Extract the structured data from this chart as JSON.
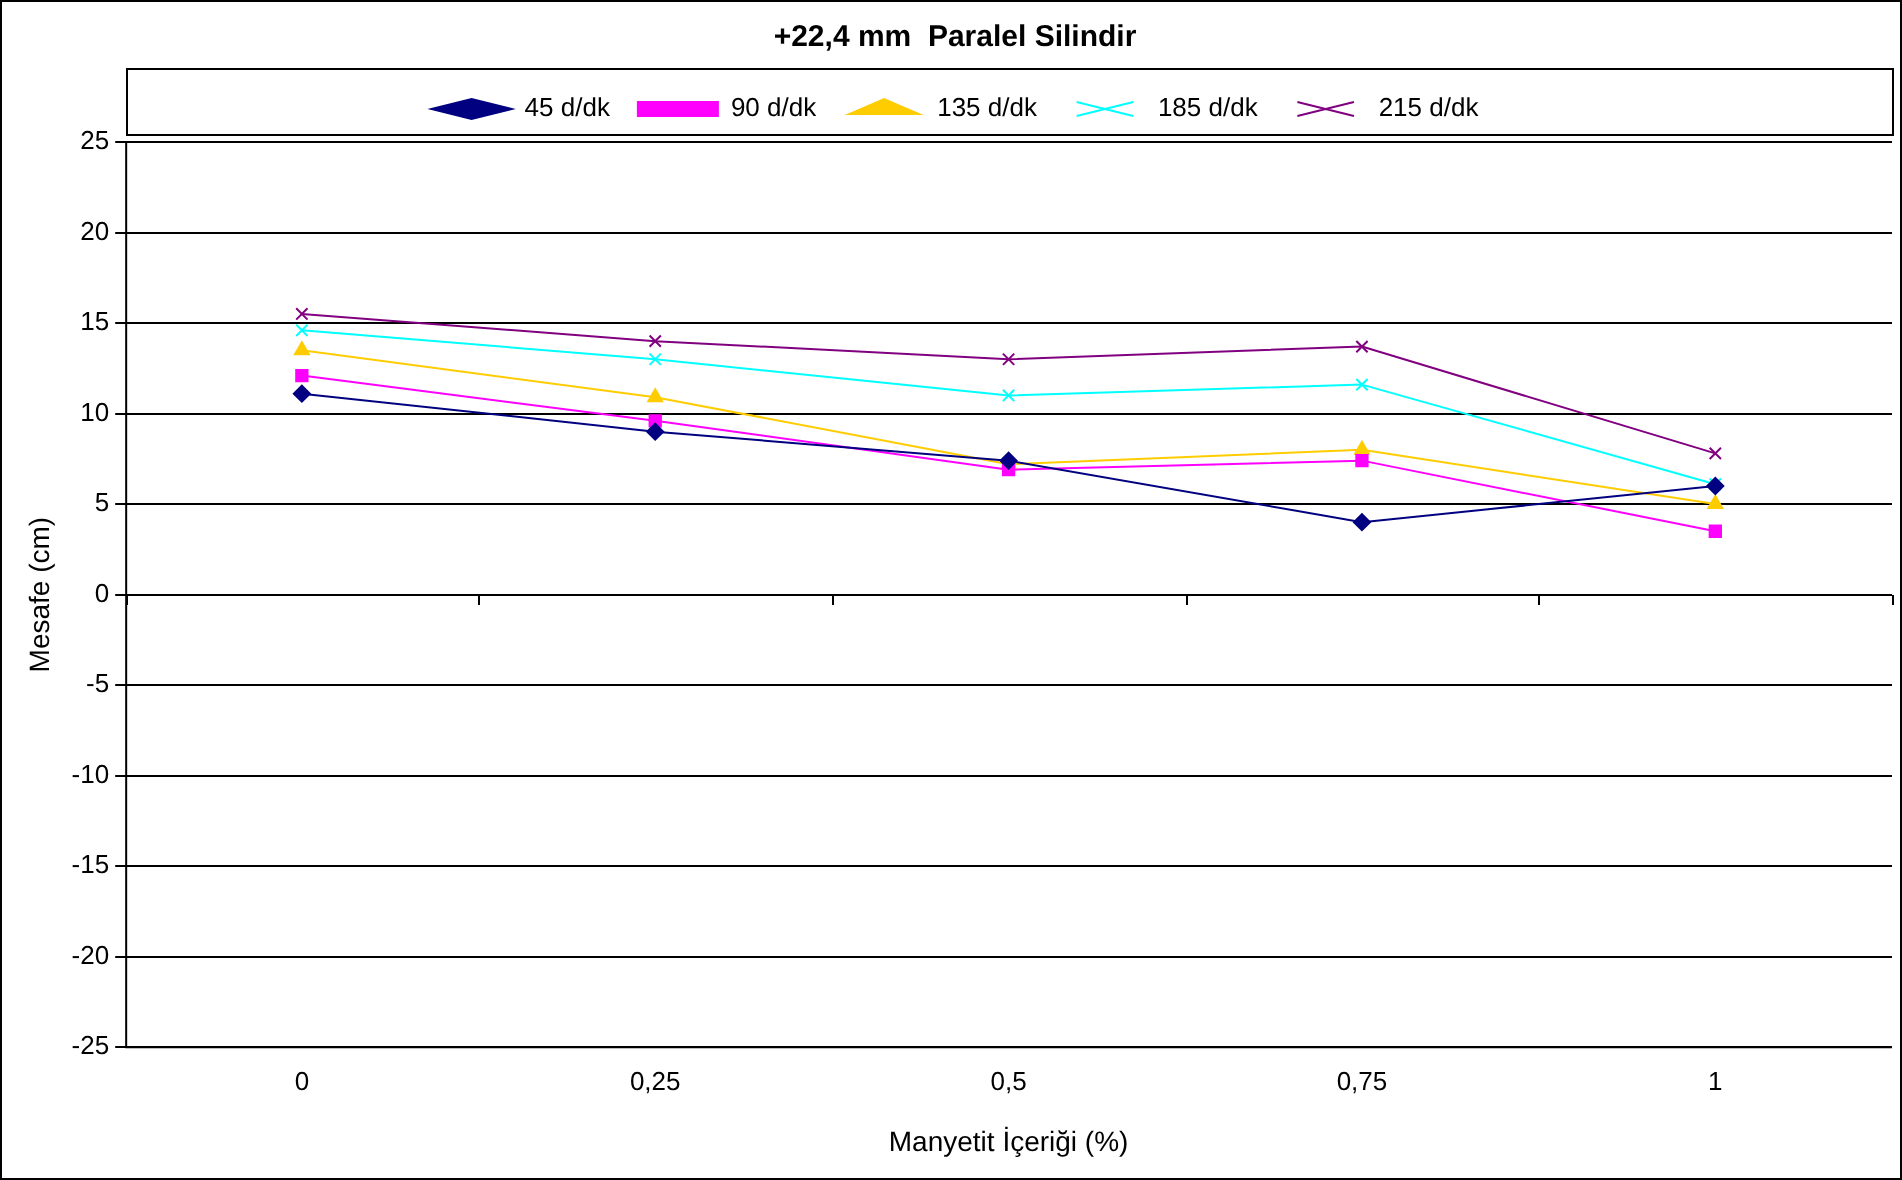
{
  "chart_data": {
    "type": "line",
    "title": "+22,4 mm  Paralel Silindir",
    "xlabel": "Manyetit İçeriği (%)",
    "ylabel": "Mesafe (cm)",
    "categories": [
      "0",
      "0,25",
      "0,5",
      "0,75",
      "1"
    ],
    "ylim": [
      -25,
      25
    ],
    "yticks": [
      -25,
      -20,
      -15,
      -10,
      -5,
      0,
      5,
      10,
      15,
      20,
      25
    ],
    "grid": "y",
    "legend": "top",
    "line_style": "solid",
    "series": [
      {
        "name": "45 d/dk",
        "color": "#000080",
        "marker": "diamond",
        "values": [
          11.1,
          9.0,
          7.4,
          4.0,
          6.0
        ]
      },
      {
        "name": "90 d/dk",
        "color": "#ff00ff",
        "marker": "square",
        "values": [
          12.1,
          9.6,
          6.9,
          7.4,
          3.5
        ]
      },
      {
        "name": "135 d/dk",
        "color": "#ffcc00",
        "marker": "triangle",
        "values": [
          13.5,
          10.9,
          7.2,
          8.0,
          5.0
        ]
      },
      {
        "name": "185 d/dk",
        "color": "#00ffff",
        "marker": "cross",
        "values": [
          14.6,
          13.0,
          11.0,
          11.6,
          6.1
        ]
      },
      {
        "name": "215 d/dk",
        "color": "#800080",
        "marker": "cross",
        "values": [
          15.5,
          14.0,
          13.0,
          13.7,
          7.8
        ]
      }
    ]
  }
}
